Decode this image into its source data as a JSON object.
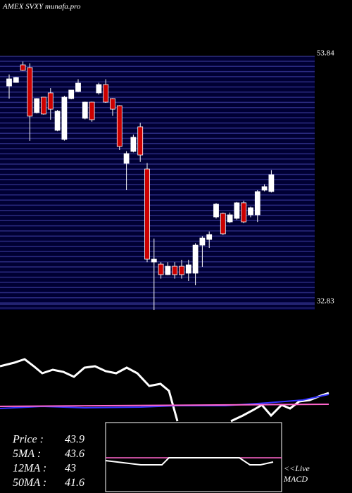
{
  "chart_data": {
    "type": "candlestick",
    "title": "AMEX  SVXY munafa.pro",
    "ylim": [
      32.83,
      53.84
    ],
    "yticks": [
      32.83,
      53.84
    ],
    "up_color": "#ffffff",
    "down_color": "#cc0000",
    "open": [
      51.33,
      51.63,
      53.12,
      52.89,
      49.07,
      50.38,
      50.74,
      47.57,
      46.8,
      50.26,
      50.86,
      48.59,
      49.96,
      50.74,
      51.45,
      50.26,
      49.66,
      44.77,
      45.78,
      47.87,
      44.29,
      36.41,
      36.23,
      35.34,
      36.05,
      36.05,
      35.46,
      35.46,
      37.84,
      38.32,
      40.23,
      40.53,
      39.81,
      40.11,
      41.43,
      40.41,
      40.41,
      42.5,
      42.38
    ],
    "high": [
      52.3,
      52.1,
      53.4,
      53.24,
      50.3,
      50.4,
      51.15,
      49.3,
      50.5,
      51.0,
      51.9,
      50.0,
      50.0,
      51.6,
      51.9,
      50.3,
      49.7,
      45.8,
      47.2,
      48.2,
      44.8,
      38.4,
      36.4,
      36.4,
      36.4,
      36.6,
      36.6,
      38.0,
      38.6,
      39.0,
      41.4,
      40.6,
      40.6,
      41.5,
      41.6,
      41.1,
      42.5,
      43.0,
      44.2
    ],
    "low": [
      50.26,
      51.6,
      52.6,
      46.68,
      49.0,
      48.9,
      48.47,
      47.5,
      46.7,
      50.2,
      50.8,
      48.5,
      48.3,
      50.6,
      49.9,
      48.8,
      45.9,
      42.5,
      45.7,
      44.9,
      36.4,
      32.35,
      35.0,
      35.3,
      35.0,
      35.0,
      34.8,
      34.44,
      36.0,
      37.6,
      40.1,
      38.7,
      39.7,
      40.0,
      39.7,
      40.2,
      39.8,
      42.4,
      42.3
    ],
    "close": [
      51.93,
      52.05,
      52.65,
      48.77,
      50.26,
      48.95,
      49.36,
      49.19,
      50.38,
      50.98,
      51.57,
      49.96,
      48.47,
      51.45,
      49.96,
      49.36,
      46.2,
      45.6,
      46.98,
      45.48,
      36.65,
      36.65,
      35.34,
      36.05,
      35.34,
      35.34,
      36.17,
      37.84,
      38.44,
      38.74,
      41.31,
      38.8,
      40.41,
      41.43,
      39.81,
      41.01,
      42.38,
      42.8,
      43.81
    ],
    "indicators": [
      {
        "label": "Price   :",
        "value": 43.9
      },
      {
        "label": "5MA :",
        "value": 43.6
      },
      {
        "label": "12MA :",
        "value": 43
      },
      {
        "label": "50MA :",
        "value": 41.6
      }
    ],
    "macd_label": [
      "<<Live",
      "MACD"
    ]
  }
}
